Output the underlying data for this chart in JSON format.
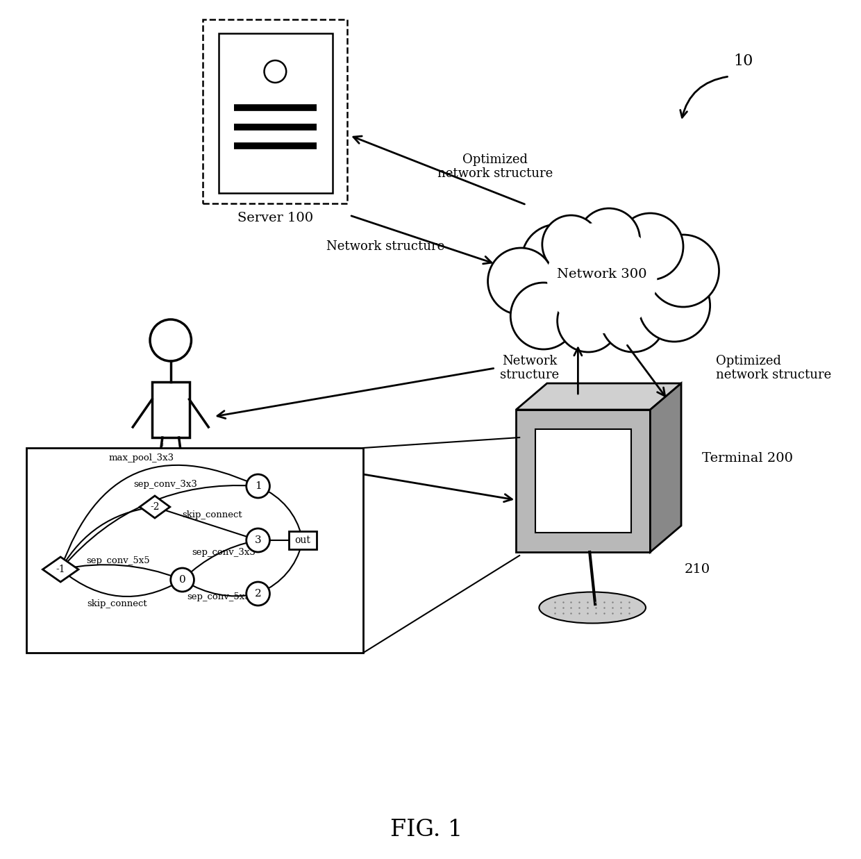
{
  "title": "FIG. 1",
  "background": "#ffffff",
  "fig_label": "10",
  "server_label": "Server 100",
  "network_label": "Network 300",
  "terminal_label": "Terminal 200",
  "terminal_sub_label": "210",
  "text_opt_net_top": "Optimized\nnetwork structure",
  "text_net_struct_top": "Network structure",
  "text_net_struct_bottom": "Network\nstructure",
  "text_opt_net_bottom": "Optimized\nnetwork structure"
}
